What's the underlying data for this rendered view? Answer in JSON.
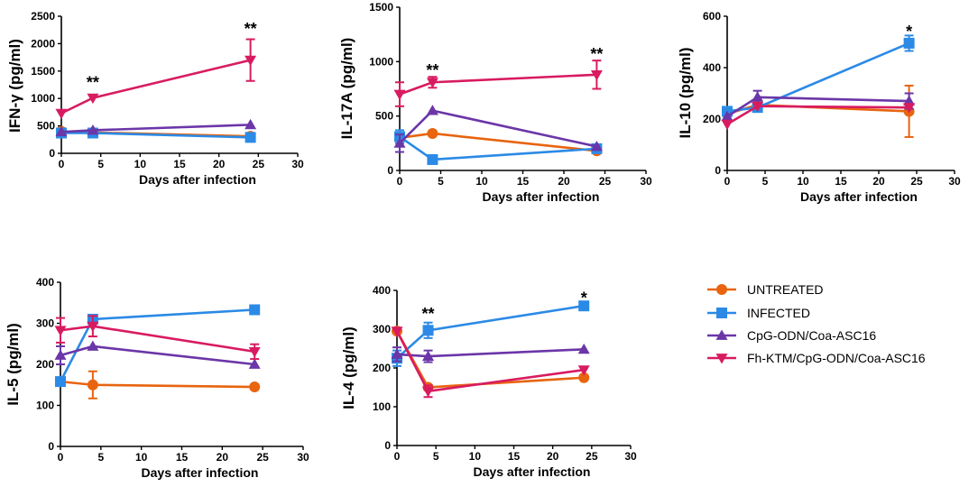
{
  "chart_data": [
    {
      "type": "line",
      "id": "ifng",
      "ylabel": "IFN-γ (pg/ml)",
      "xlabel": "Days after infection",
      "xlim": [
        0,
        30
      ],
      "xticks": [
        0,
        5,
        10,
        15,
        20,
        25,
        30
      ],
      "ylim": [
        0,
        2500
      ],
      "yticks": [
        0,
        500,
        1000,
        1500,
        2000,
        2500
      ],
      "x": [
        0,
        4,
        24
      ],
      "series": [
        {
          "name": "UNTREATED",
          "values": [
            400,
            380,
            310
          ],
          "errors": [
            0,
            0,
            0
          ]
        },
        {
          "name": "INFECTED",
          "values": [
            370,
            370,
            290
          ],
          "errors": [
            0,
            0,
            0
          ]
        },
        {
          "name": "CpG-ODN/Coa-ASC16",
          "values": [
            390,
            420,
            520
          ],
          "errors": [
            0,
            0,
            0
          ]
        },
        {
          "name": "Fh-KTM/CpG-ODN/Coa-ASC16",
          "values": [
            730,
            1010,
            1700
          ],
          "errors": [
            0,
            0,
            380
          ]
        }
      ],
      "annotations": [
        {
          "x": 4,
          "y": 1290,
          "text": "**"
        },
        {
          "x": 24,
          "y": 2270,
          "text": "**"
        }
      ]
    },
    {
      "type": "line",
      "id": "il17a",
      "ylabel": "IL-17A (pg/ml)",
      "xlabel": "Days after infection",
      "xlim": [
        0,
        30
      ],
      "xticks": [
        0,
        5,
        10,
        15,
        20,
        25,
        30
      ],
      "ylim": [
        0,
        1500
      ],
      "yticks": [
        0,
        500,
        1000,
        1500
      ],
      "x": [
        0,
        4,
        24
      ],
      "series": [
        {
          "name": "UNTREATED",
          "values": [
            300,
            340,
            180
          ],
          "errors": [
            0,
            0,
            0
          ]
        },
        {
          "name": "INFECTED",
          "values": [
            310,
            100,
            200
          ],
          "errors": [
            60,
            0,
            0
          ]
        },
        {
          "name": "CpG-ODN/Coa-ASC16",
          "values": [
            250,
            550,
            220
          ],
          "errors": [
            80,
            0,
            0
          ]
        },
        {
          "name": "Fh-KTM/CpG-ODN/Coa-ASC16",
          "values": [
            700,
            810,
            880
          ],
          "errors": [
            110,
            50,
            130
          ]
        }
      ],
      "annotations": [
        {
          "x": 4,
          "y": 920,
          "text": "**"
        },
        {
          "x": 24,
          "y": 1070,
          "text": "**"
        }
      ]
    },
    {
      "type": "line",
      "id": "il10",
      "ylabel": "IL-10 (pg/ml)",
      "xlabel": "Days after infection",
      "xlim": [
        0,
        30
      ],
      "xticks": [
        0,
        5,
        10,
        15,
        20,
        25,
        30
      ],
      "ylim": [
        0,
        600
      ],
      "yticks": [
        0,
        200,
        400,
        600
      ],
      "x": [
        0,
        4,
        24
      ],
      "series": [
        {
          "name": "UNTREATED",
          "values": [
            220,
            255,
            230
          ],
          "errors": [
            0,
            0,
            100
          ]
        },
        {
          "name": "INFECTED",
          "values": [
            230,
            245,
            495
          ],
          "errors": [
            0,
            0,
            30
          ]
        },
        {
          "name": "CpG-ODN/Coa-ASC16",
          "values": [
            210,
            285,
            270
          ],
          "errors": [
            0,
            25,
            30
          ]
        },
        {
          "name": "Fh-KTM/CpG-ODN/Coa-ASC16",
          "values": [
            180,
            250,
            245
          ],
          "errors": [
            0,
            0,
            0
          ]
        }
      ],
      "annotations": [
        {
          "x": 24,
          "y": 540,
          "text": "*"
        }
      ]
    },
    {
      "type": "line",
      "id": "il5",
      "ylabel": "IL-5 (pg/ml)",
      "xlabel": "Days after infection",
      "xlim": [
        0,
        30
      ],
      "xticks": [
        0,
        5,
        10,
        15,
        20,
        25,
        30
      ],
      "ylim": [
        0,
        400
      ],
      "yticks": [
        0,
        100,
        200,
        300,
        400
      ],
      "x": [
        0,
        4,
        24
      ],
      "series": [
        {
          "name": "UNTREATED",
          "values": [
            158,
            150,
            145
          ],
          "errors": [
            0,
            33,
            0
          ]
        },
        {
          "name": "INFECTED",
          "values": [
            158,
            310,
            333
          ],
          "errors": [
            0,
            10,
            0
          ]
        },
        {
          "name": "CpG-ODN/Coa-ASC16",
          "values": [
            222,
            244,
            200
          ],
          "errors": [
            22,
            0,
            0
          ]
        },
        {
          "name": "Fh-KTM/CpG-ODN/Coa-ASC16",
          "values": [
            283,
            293,
            231
          ],
          "errors": [
            30,
            25,
            18
          ]
        }
      ],
      "annotations": []
    },
    {
      "type": "line",
      "id": "il4",
      "ylabel": "IL-4 (pg/ml)",
      "xlabel": "Days after infection",
      "xlim": [
        0,
        30
      ],
      "xticks": [
        0,
        5,
        10,
        15,
        20,
        25,
        30
      ],
      "ylim": [
        0,
        400
      ],
      "yticks": [
        0,
        100,
        200,
        300,
        400
      ],
      "x": [
        0,
        4,
        24
      ],
      "series": [
        {
          "name": "UNTREATED",
          "values": [
            295,
            150,
            175
          ],
          "errors": [
            0,
            0,
            0
          ]
        },
        {
          "name": "INFECTED",
          "values": [
            225,
            297,
            360
          ],
          "errors": [
            20,
            20,
            0
          ]
        },
        {
          "name": "CpG-ODN/Coa-ASC16",
          "values": [
            235,
            230,
            248
          ],
          "errors": [
            18,
            15,
            0
          ]
        },
        {
          "name": "Fh-KTM/CpG-ODN/Coa-ASC16",
          "values": [
            295,
            140,
            195
          ],
          "errors": [
            0,
            15,
            0
          ]
        }
      ],
      "annotations": [
        {
          "x": 4,
          "y": 340,
          "text": "**"
        },
        {
          "x": 24,
          "y": 380,
          "text": "*"
        }
      ]
    }
  ],
  "legend": [
    {
      "name": "UNTREATED",
      "label": "UNTREATED",
      "color": "#E8640F",
      "marker": "circle"
    },
    {
      "name": "INFECTED",
      "label": "INFECTED",
      "color": "#2B8AE6",
      "marker": "square"
    },
    {
      "name": "CpG-ODN/Coa-ASC16",
      "label": "CpG-ODN/Coa-ASC16",
      "color": "#6B36A8",
      "marker": "triangle-up"
    },
    {
      "name": "Fh-KTM/CpG-ODN/Coa-ASC16",
      "label": "Fh-KTM/CpG-ODN/Coa-ASC16",
      "color": "#D81B60",
      "marker": "triangle-down"
    }
  ]
}
